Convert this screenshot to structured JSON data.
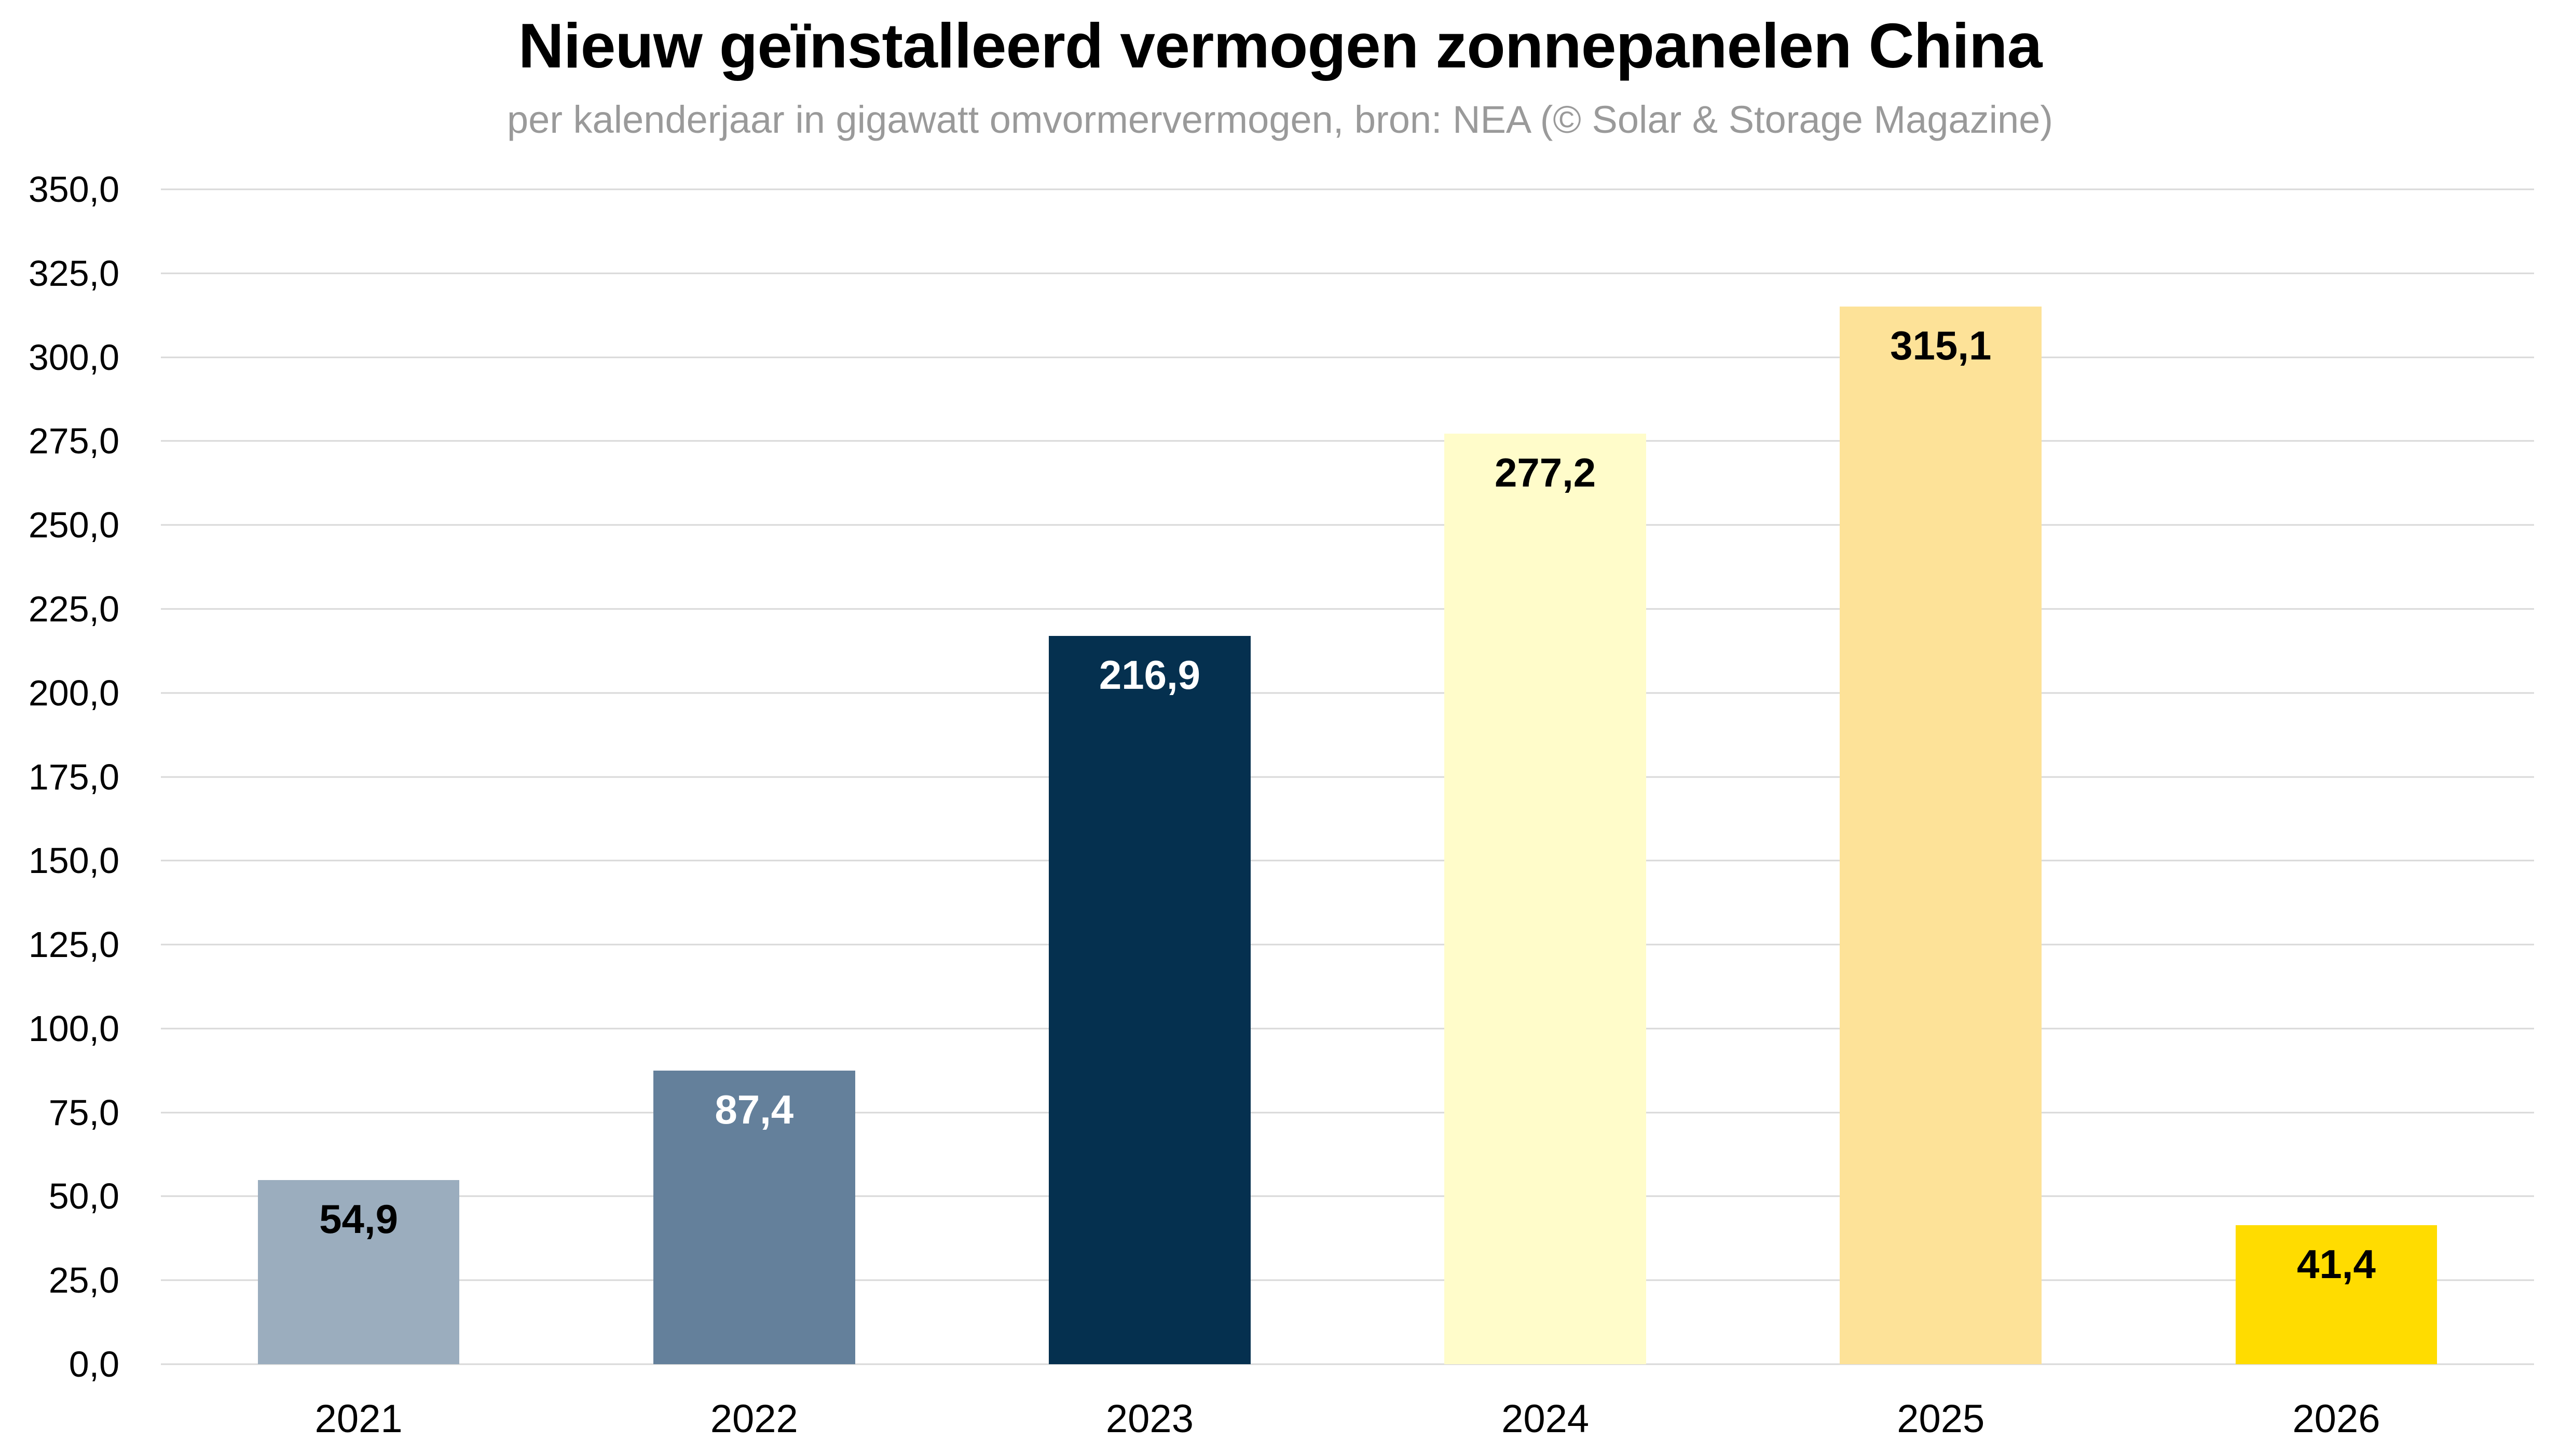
{
  "chart_data": {
    "type": "bar",
    "title": "Nieuw geïnstalleerd vermogen zonnepanelen China",
    "subtitle": "per kalenderjaar in gigawatt omvormervermogen, bron: NEA (© Solar & Storage Magazine)",
    "categories": [
      "2021",
      "2022",
      "2023",
      "2024",
      "2025",
      "2026"
    ],
    "values": [
      54.9,
      87.4,
      216.9,
      277.2,
      315.1,
      41.4
    ],
    "value_labels": [
      "54,9",
      "87,4",
      "216,9",
      "277,2",
      "315,1",
      "41,4"
    ],
    "bar_colors": [
      "#9badbe",
      "#64809b",
      "#05304f",
      "#fffcca",
      "#fde298",
      "#ffdc00"
    ],
    "value_label_colors": [
      "#000000",
      "#ffffff",
      "#ffffff",
      "#000000",
      "#000000",
      "#000000"
    ],
    "xlabel": "",
    "ylabel": "",
    "ylim": [
      0,
      350
    ],
    "ytick_step": 25,
    "ytick_labels_top_down": [
      "350,0",
      "325,0",
      "300,0",
      "275,0",
      "250,0",
      "225,0",
      "200,0",
      "175,0",
      "150,0",
      "125,0",
      "100,0",
      "75,0",
      "50,0",
      "25,0",
      "0,0"
    ],
    "grid": "horizontal",
    "gridline_color": "#d8d8d8",
    "background_color": "#ffffff",
    "legend_position": "none"
  }
}
